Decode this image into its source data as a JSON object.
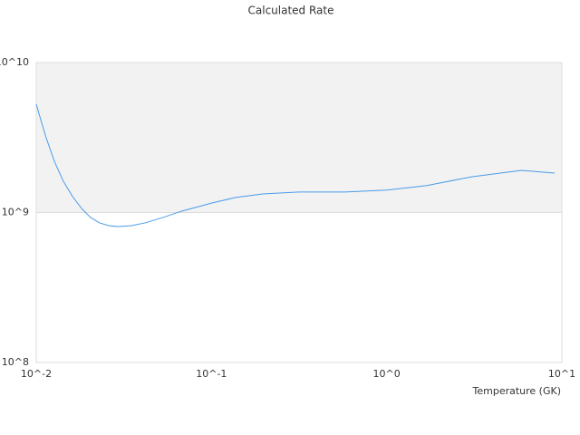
{
  "chart_data": {
    "type": "line",
    "title": "Calculated Rate",
    "x_label": "Temperature (GK)",
    "xscale": "log",
    "yscale": "log",
    "xlim": [
      0.01,
      10
    ],
    "ylim": [
      100000000,
      10000000000
    ],
    "xticks": [
      {
        "value": 0.01,
        "label": "10^-2"
      },
      {
        "value": 0.1,
        "label": "10^-1"
      },
      {
        "value": 1,
        "label": "10^0"
      },
      {
        "value": 10,
        "label": "10^1"
      }
    ],
    "yticks": [
      {
        "value": 100000000,
        "label": "10^8"
      },
      {
        "value": 1000000000,
        "label": "10^9"
      },
      {
        "value": 10000000000,
        "label": "10^10"
      }
    ],
    "band_color": "#f2f2f2",
    "series": [
      {
        "color": "#4a9be8",
        "x": [
          0.01,
          0.0113,
          0.0127,
          0.0143,
          0.0161,
          0.0182,
          0.0204,
          0.023,
          0.0259,
          0.0292,
          0.0349,
          0.0418,
          0.053,
          0.0673,
          0.1,
          0.1375,
          0.196,
          0.316,
          0.574,
          1,
          1.68,
          3.05,
          5.87,
          9.1
        ],
        "values": [
          5270000000,
          3240000000,
          2190000000,
          1610000000,
          1280000000,
          1060000000,
          927000000,
          853000000,
          817000000,
          806000000,
          817000000,
          853000000,
          927000000,
          1020000000,
          1156000000,
          1260000000,
          1330000000,
          1370000000,
          1370000000,
          1410000000,
          1510000000,
          1730000000,
          1910000000,
          1830000000
        ]
      }
    ]
  }
}
